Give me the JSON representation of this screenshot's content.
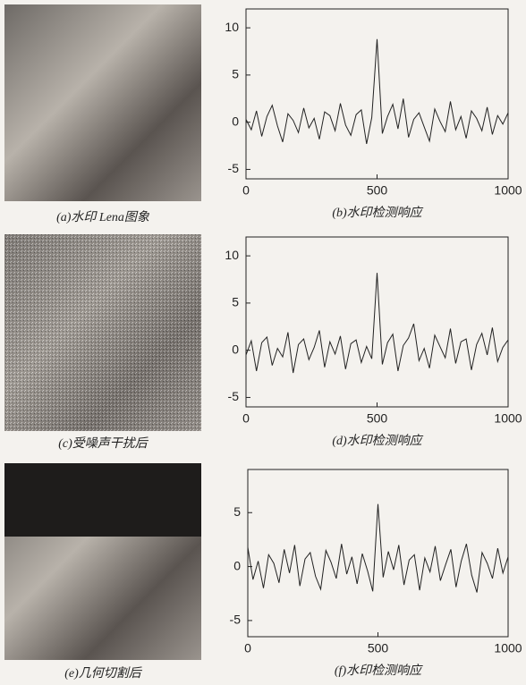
{
  "images": [
    {
      "caption": "(a)水印 Lena图象"
    },
    {
      "caption": "(c)受噪声干扰后"
    },
    {
      "caption": "(e)几何切割后"
    }
  ],
  "chart_data": [
    {
      "type": "line",
      "title": "(b)水印检测响应",
      "color": "#222222",
      "x": [
        0,
        20,
        40,
        60,
        80,
        100,
        120,
        140,
        160,
        180,
        200,
        220,
        240,
        260,
        280,
        300,
        320,
        340,
        360,
        380,
        400,
        420,
        440,
        460,
        480,
        500,
        520,
        540,
        560,
        580,
        600,
        620,
        640,
        660,
        680,
        700,
        720,
        740,
        760,
        780,
        800,
        820,
        840,
        860,
        880,
        900,
        920,
        940,
        960,
        980,
        1000
      ],
      "values": [
        0.3,
        -0.8,
        1.2,
        -1.5,
        0.6,
        1.8,
        -0.4,
        -2.1,
        0.9,
        0.2,
        -1.1,
        1.5,
        -0.6,
        0.4,
        -1.8,
        1.1,
        0.7,
        -0.9,
        2.0,
        -0.3,
        -1.4,
        0.8,
        1.3,
        -2.3,
        0.5,
        8.8,
        -1.2,
        0.6,
        1.9,
        -0.7,
        2.5,
        -1.6,
        0.3,
        1.0,
        -0.5,
        -2.0,
        1.4,
        0.1,
        -1.0,
        2.2,
        -0.8,
        0.6,
        -1.7,
        1.2,
        0.4,
        -0.9,
        1.6,
        -1.3,
        0.7,
        -0.2,
        1.0
      ],
      "xlim": [
        0,
        1000
      ],
      "xticks": [
        0,
        500,
        1000
      ],
      "ylim": [
        -6,
        12
      ],
      "yticks": [
        -5,
        0,
        5,
        10
      ]
    },
    {
      "type": "line",
      "title": "(d)水印检测响应",
      "color": "#222222",
      "x": [
        0,
        20,
        40,
        60,
        80,
        100,
        120,
        140,
        160,
        180,
        200,
        220,
        240,
        260,
        280,
        300,
        320,
        340,
        360,
        380,
        400,
        420,
        440,
        460,
        480,
        500,
        520,
        540,
        560,
        580,
        600,
        620,
        640,
        660,
        680,
        700,
        720,
        740,
        760,
        780,
        800,
        820,
        840,
        860,
        880,
        900,
        920,
        940,
        960,
        980,
        1000
      ],
      "values": [
        -0.5,
        1.0,
        -2.2,
        0.8,
        1.4,
        -1.6,
        0.2,
        -0.7,
        1.9,
        -2.4,
        0.6,
        1.2,
        -1.0,
        0.3,
        2.1,
        -1.8,
        0.9,
        -0.4,
        1.5,
        -2.0,
        0.7,
        1.1,
        -1.3,
        0.4,
        -0.9,
        8.2,
        -1.5,
        0.8,
        1.7,
        -2.2,
        0.5,
        1.3,
        2.8,
        -1.1,
        0.2,
        -1.9,
        1.6,
        0.4,
        -0.8,
        2.3,
        -1.4,
        0.9,
        1.2,
        -2.1,
        0.6,
        1.8,
        -0.5,
        2.4,
        -1.2,
        0.3,
        1.1
      ],
      "xlim": [
        0,
        1000
      ],
      "xticks": [
        0,
        500,
        1000
      ],
      "ylim": [
        -6,
        12
      ],
      "yticks": [
        -5,
        0,
        5,
        10
      ]
    },
    {
      "type": "line",
      "title": "(f)水印检测响应",
      "color": "#222222",
      "x": [
        0,
        20,
        40,
        60,
        80,
        100,
        120,
        140,
        160,
        180,
        200,
        220,
        240,
        260,
        280,
        300,
        320,
        340,
        360,
        380,
        400,
        420,
        440,
        460,
        480,
        500,
        520,
        540,
        560,
        580,
        600,
        620,
        640,
        660,
        680,
        700,
        720,
        740,
        760,
        780,
        800,
        820,
        840,
        860,
        880,
        900,
        920,
        940,
        960,
        980,
        1000
      ],
      "values": [
        1.8,
        -1.2,
        0.5,
        -2.0,
        1.1,
        0.3,
        -1.5,
        1.6,
        -0.6,
        2.0,
        -1.8,
        0.7,
        1.3,
        -0.9,
        -2.1,
        1.5,
        0.4,
        -1.1,
        2.1,
        -0.7,
        0.9,
        -1.6,
        1.2,
        -0.4,
        -2.3,
        5.8,
        -1.0,
        1.4,
        -0.3,
        2.0,
        -1.7,
        0.6,
        1.1,
        -2.2,
        0.8,
        -0.5,
        1.9,
        -1.3,
        0.2,
        1.6,
        -1.9,
        0.5,
        2.1,
        -0.8,
        -2.4,
        1.3,
        0.3,
        -1.1,
        1.7,
        -0.6,
        0.9
      ],
      "xlim": [
        0,
        1000
      ],
      "xticks": [
        0,
        500,
        1000
      ],
      "ylim": [
        -6.5,
        9
      ],
      "yticks": [
        -5,
        0,
        5
      ]
    }
  ]
}
